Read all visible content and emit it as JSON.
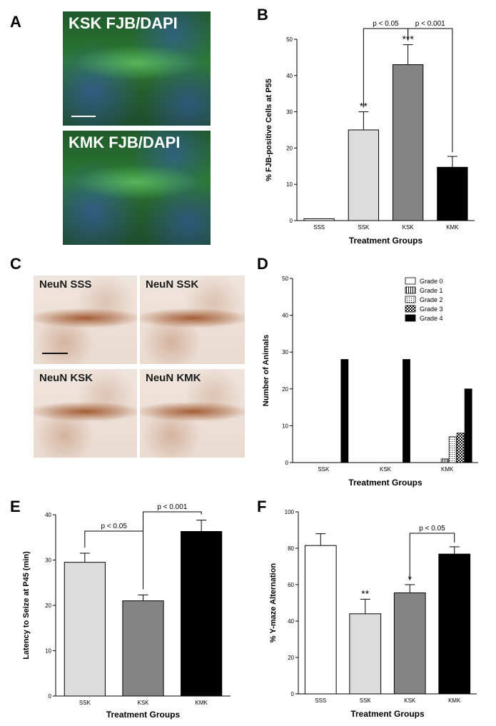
{
  "panel_letters": {
    "a": "A",
    "b": "B",
    "c": "C",
    "d": "D",
    "e": "E",
    "f": "F"
  },
  "micrographs": {
    "a_top": "KSK FJB/DAPI",
    "a_bottom": "KMK FJB/DAPI",
    "c_tl": "NeuN SSS",
    "c_tr": "NeuN SSK",
    "c_bl": "NeuN KSK",
    "c_br": "NeuN KMK"
  },
  "colors": {
    "white": "#ffffff",
    "light_gray": "#dcdcdc",
    "mid_gray": "#848484",
    "black": "#000000"
  },
  "chart_data": [
    {
      "panel": "B",
      "type": "bar",
      "categories": [
        "SSS",
        "SSK",
        "KSK",
        "KMK"
      ],
      "values": [
        0.5,
        25,
        43,
        14.7
      ],
      "errors": [
        0,
        5,
        5.5,
        3
      ],
      "bar_colors": [
        "#ffffff",
        "#dcdcdc",
        "#848484",
        "#000000"
      ],
      "significance": [
        "",
        "**",
        "***",
        ""
      ],
      "ylim": [
        0,
        50
      ],
      "yticks": [
        0,
        10,
        20,
        30,
        40,
        50
      ],
      "ylabel": "% FJB-positive Cells at P55",
      "xlabel": "Treatment Groups",
      "comparisons": [
        {
          "from": 1,
          "to": 2,
          "label": "p < 0.05"
        },
        {
          "from": 2,
          "to": 3,
          "label": "p < 0.001"
        }
      ]
    },
    {
      "panel": "D",
      "type": "bar",
      "categories": [
        "SSK",
        "KSK",
        "KMK"
      ],
      "series": [
        {
          "name": "Grade 0",
          "values": [
            0,
            0,
            0
          ],
          "pattern": "white"
        },
        {
          "name": "Grade 1",
          "values": [
            0,
            0,
            1
          ],
          "pattern": "vstripe"
        },
        {
          "name": "Grade 2",
          "values": [
            0,
            0,
            7
          ],
          "pattern": "dots"
        },
        {
          "name": "Grade 3",
          "values": [
            0,
            0,
            8
          ],
          "pattern": "check"
        },
        {
          "name": "Grade 4",
          "values": [
            28,
            28,
            20
          ],
          "pattern": "black"
        }
      ],
      "ylim": [
        0,
        50
      ],
      "yticks": [
        0,
        10,
        20,
        30,
        40,
        50
      ],
      "ylabel": "Number of Animals",
      "xlabel": "Treatment Groups",
      "legend": "top-right"
    },
    {
      "panel": "E",
      "type": "bar",
      "categories": [
        "SSK",
        "KSK",
        "KMK"
      ],
      "values": [
        29.5,
        21,
        36.3
      ],
      "errors": [
        2,
        1.3,
        2.5
      ],
      "bar_colors": [
        "#dcdcdc",
        "#848484",
        "#000000"
      ],
      "significance": [
        "",
        "",
        ""
      ],
      "ylim": [
        0,
        40
      ],
      "yticks": [
        0,
        10,
        20,
        30,
        40
      ],
      "ylabel": "Latency to Seize at P45 (min)",
      "xlabel": "Treatment Groups",
      "comparisons": [
        {
          "from": 0,
          "to": 1,
          "label": "p < 0.05"
        },
        {
          "from": 1,
          "to": 2,
          "label": "p < 0.001"
        }
      ]
    },
    {
      "panel": "F",
      "type": "bar",
      "categories": [
        "SSS",
        "SSK",
        "KSK",
        "KMK"
      ],
      "values": [
        81.5,
        44,
        55.5,
        76.8
      ],
      "errors": [
        6.5,
        8,
        4.5,
        4
      ],
      "bar_colors": [
        "#ffffff",
        "#dcdcdc",
        "#848484",
        "#000000"
      ],
      "significance": [
        "",
        "**",
        "*",
        ""
      ],
      "ylim": [
        0,
        100
      ],
      "yticks": [
        0,
        20,
        40,
        60,
        80,
        100
      ],
      "ylabel": "% Y-maze Alternation",
      "xlabel": "Treatment Groups",
      "comparisons": [
        {
          "from": 2,
          "to": 3,
          "label": "p < 0.05"
        }
      ]
    }
  ]
}
